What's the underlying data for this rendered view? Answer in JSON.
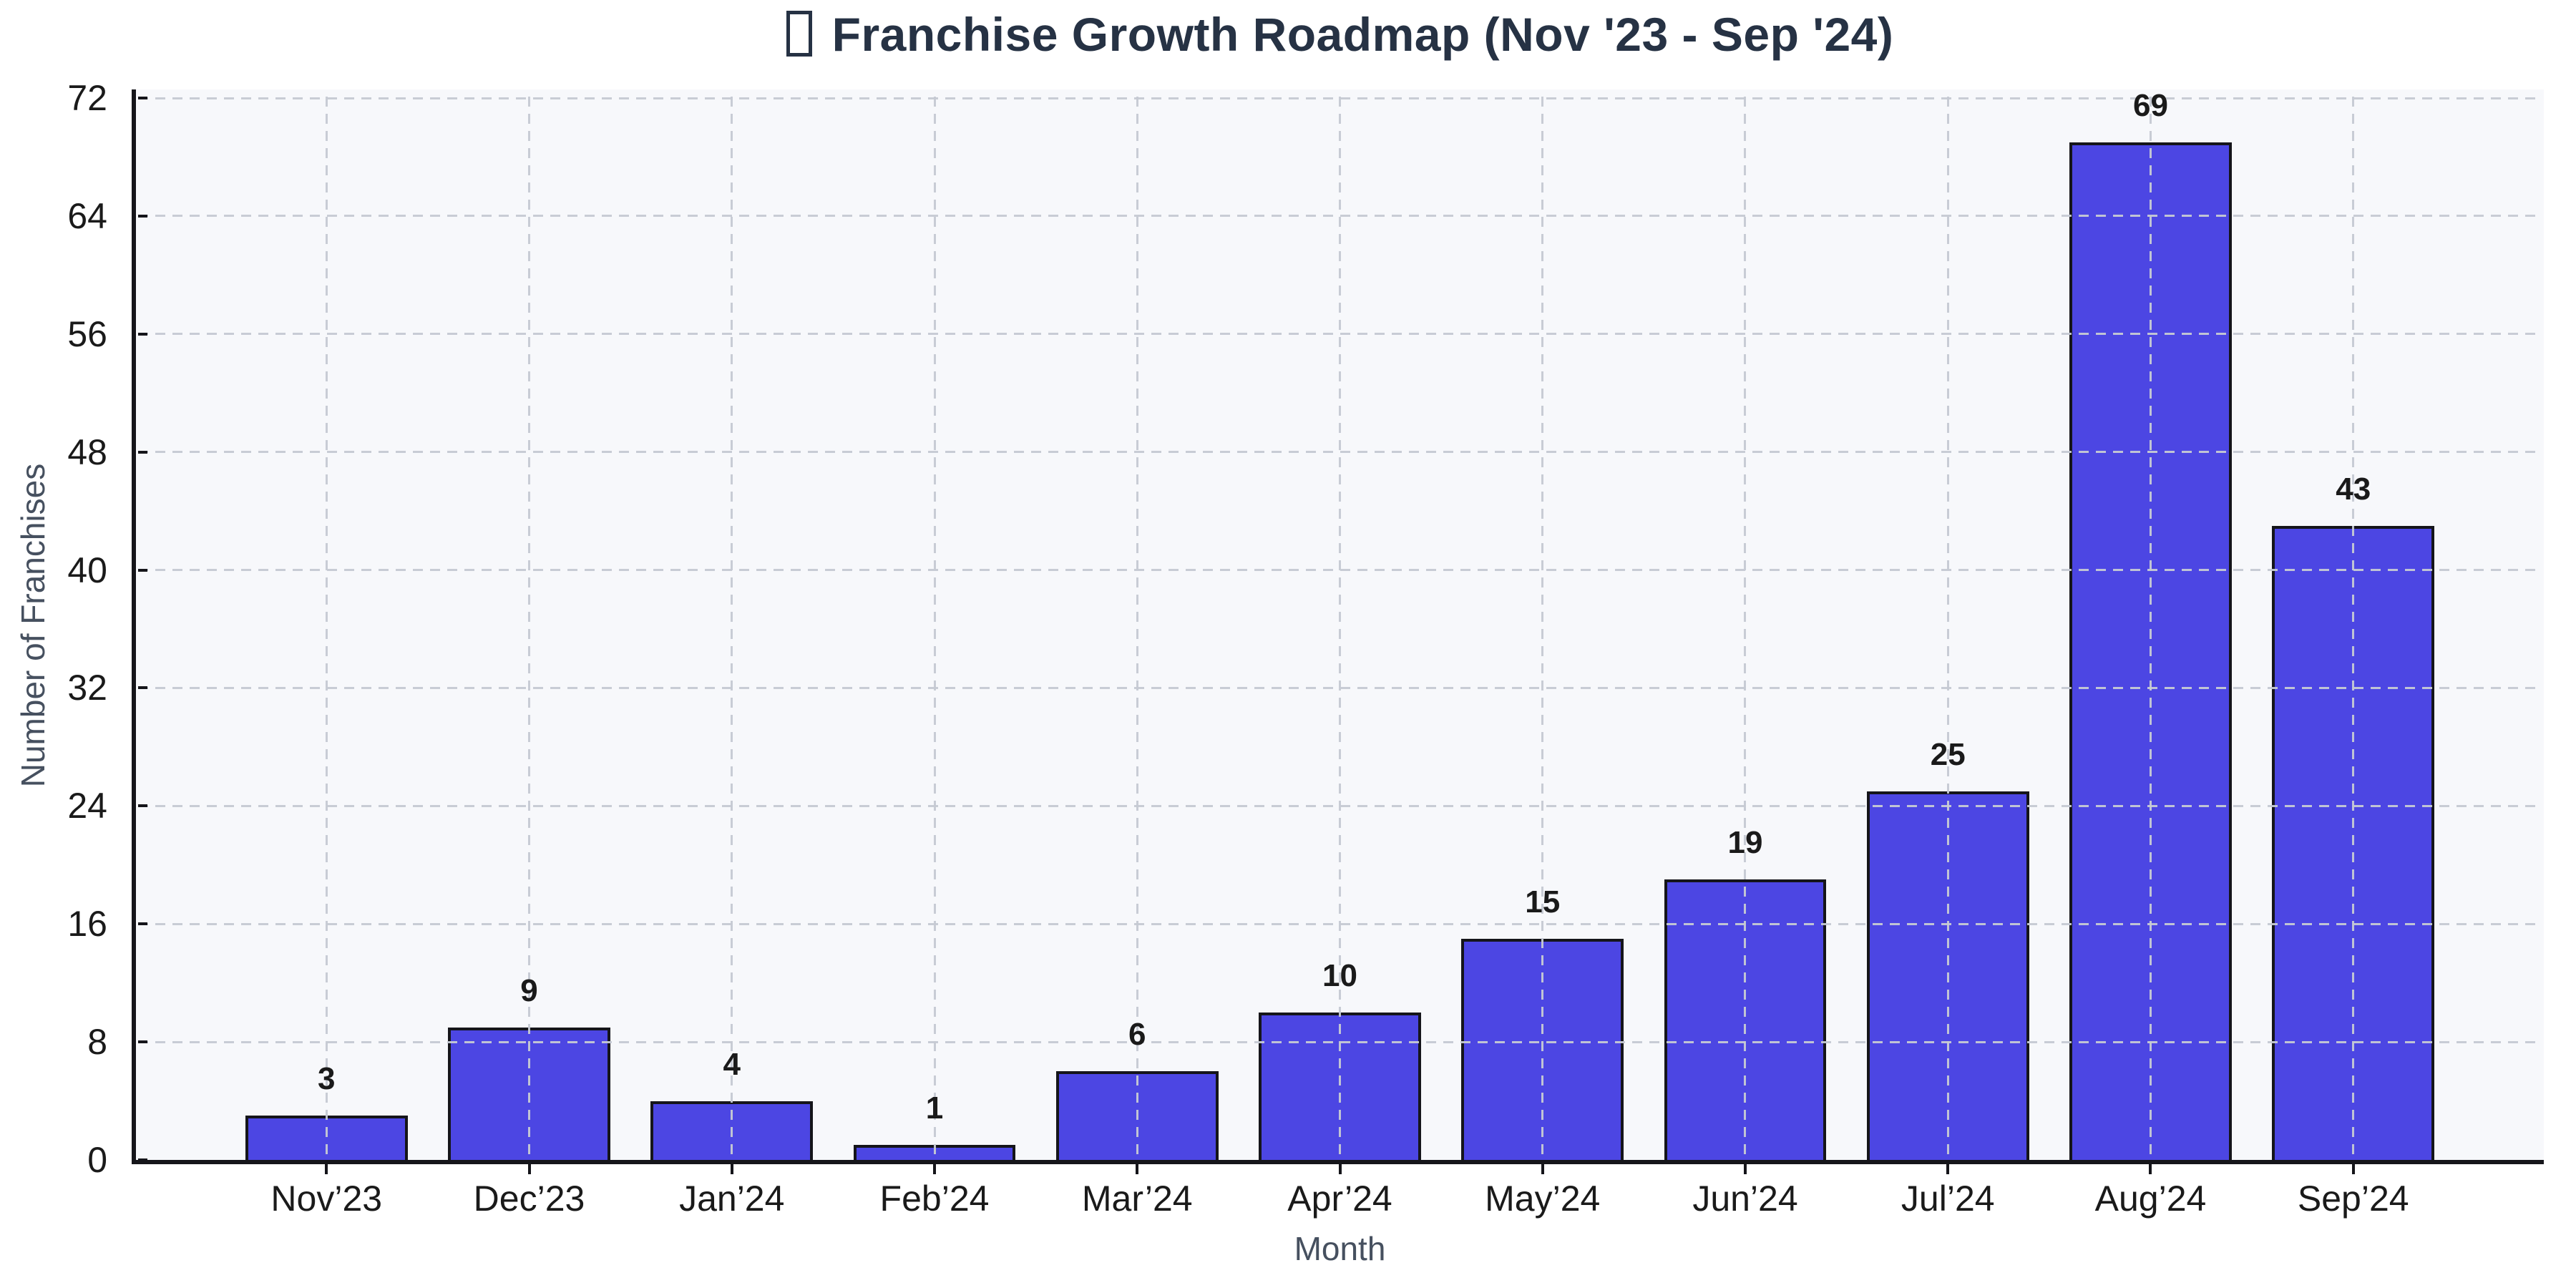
{
  "chart_data": {
    "type": "bar",
    "title": "Franchise Growth Roadmap (Nov '23 - Sep '24)",
    "title_has_leading_missing_glyph_box": true,
    "xlabel": "Month",
    "ylabel": "Number of Franchises",
    "categories": [
      "Nov’23",
      "Dec’23",
      "Jan’24",
      "Feb’24",
      "Mar’24",
      "Apr’24",
      "May’24",
      "Jun’24",
      "Jul’24",
      "Aug’24",
      "Sep’24"
    ],
    "values": [
      3,
      9,
      4,
      1,
      6,
      10,
      15,
      19,
      25,
      69,
      43
    ],
    "yticks": [
      0,
      8,
      16,
      24,
      32,
      40,
      48,
      56,
      64,
      72
    ],
    "ylim": [
      0,
      72.5
    ],
    "value_labels_shown": true,
    "legend": null,
    "grid": {
      "horizontal": true,
      "vertical": true,
      "style": "dashed"
    },
    "colors": {
      "bar_fill": "#4C46E3",
      "bar_edge": "#15151A",
      "title": "#263244",
      "axis_label": "#46505F",
      "tick_label": "#1A1A1A",
      "gridline": "#C6CAD3",
      "plot_background": "#F7F8FB",
      "figure_background": "#FFFFFF",
      "spine": "#15151A"
    }
  }
}
